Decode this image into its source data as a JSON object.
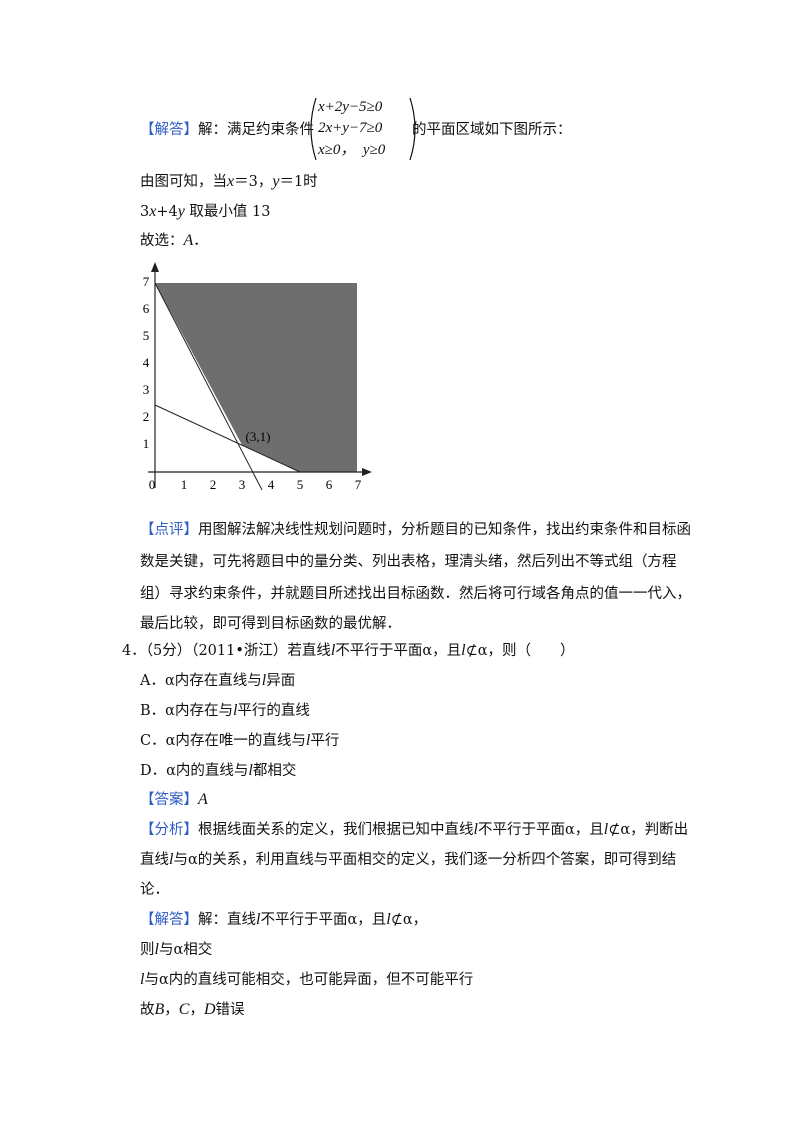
{
  "solution3": {
    "tag": "【解答】",
    "before": "解：满足约束条件",
    "system": [
      "x+2y−5≥0",
      "2x+y−7≥0",
      "x≥0，  y≥0"
    ],
    "after": "的平面区域如下图所示：",
    "lines": [
      [
        "由图可知，当",
        "x",
        "＝3，",
        "y",
        "＝1时"
      ],
      [
        "3",
        "x",
        "+4",
        "y",
        " 取最小值 13"
      ],
      [
        "故选：",
        "A",
        "．"
      ]
    ]
  },
  "figure": {
    "x_ticks": [
      0,
      1,
      2,
      3,
      4,
      5,
      6,
      7
    ],
    "y_ticks": [
      1,
      2,
      3,
      4,
      5,
      6,
      7
    ],
    "point_label": "(3,1)"
  },
  "review": {
    "tag": "【点评】",
    "lines": [
      [
        "用图解法解决线性规划问题时，分析题目的已知条件，找出约束条件和目标函"
      ],
      [
        "数是关键，可先将题目中的量分类、列出表格，理清头绪，然后列出不等式组（方程"
      ],
      [
        "组）寻求约束条件，并就题目所述找出目标函数．然后将可行域各角点的值一一代入，"
      ],
      [
        "最后比较，即可得到目标函数的最优解．"
      ]
    ]
  },
  "question4": {
    "stem": [
      "4．（5分）（2011•浙江）若直线",
      "l",
      "不平行于平面α，且",
      "l",
      "⊄α，则（　　）"
    ],
    "options": [
      [
        "A．α内存在直线与",
        "l",
        "异面"
      ],
      [
        "B．α内存在与",
        "l",
        "平行的直线"
      ],
      [
        "C．α内存在唯一的直线与",
        "l",
        "平行"
      ],
      [
        "D．α内的直线与",
        "l",
        "都相交"
      ]
    ]
  },
  "answer": {
    "tag": "【答案】",
    "text": "A"
  },
  "analysis": {
    "tag": "【分析】",
    "lines": [
      [
        "根据线面关系的定义，我们根据已知中直线",
        "l",
        "不平行于平面α，且",
        "l",
        "⊄α，判断出"
      ],
      [
        "直线",
        "l",
        "与α的关系，利用直线与平面相交的定义，我们逐一分析四个答案，即可得到结"
      ],
      [
        "论．"
      ]
    ]
  },
  "solution4": {
    "tag": "【解答】",
    "lines": [
      [
        "解：直线",
        "l",
        "不平行于平面α，且",
        "l",
        "⊄α，"
      ],
      [
        "则",
        "l",
        "与α相交"
      ],
      [
        "l",
        "与α内的直线可能相交，也可能异面，但不可能平行"
      ],
      [
        "故",
        "B",
        "，",
        "C",
        "，",
        "D",
        "错误"
      ]
    ]
  }
}
